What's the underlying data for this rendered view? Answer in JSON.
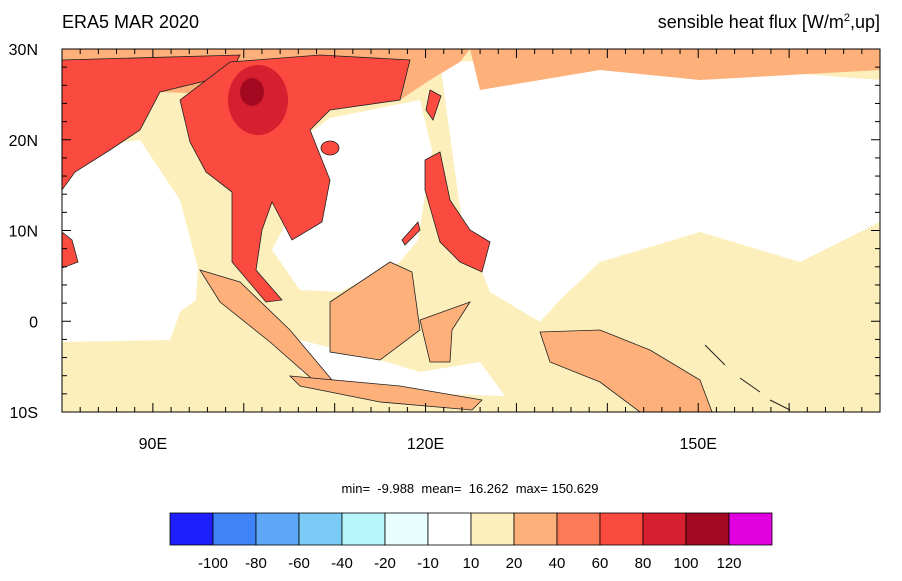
{
  "header": {
    "title": "ERA5 MAR 2020",
    "variable": [
      "sensible heat flux [W/m",
      "2",
      ",up]"
    ]
  },
  "axes": {
    "lat_labels": [
      "30N",
      "20N",
      "10N",
      "0",
      "10S"
    ],
    "lon_labels": [
      "90E",
      "120E",
      "150E"
    ]
  },
  "stats": "min=  -9.988  mean=  16.262  max= 150.629",
  "colorbar": {
    "colors": [
      "#1f1ffd",
      "#3f83f7",
      "#5ca8f6",
      "#7acbf6",
      "#b6f6fa",
      "#e6fefd",
      "#ffffff",
      "#fdefbb",
      "#fdb07a",
      "#fc7a58",
      "#fb4a40",
      "#d7202f",
      "#a30a21",
      "#e000e0"
    ],
    "labels": [
      "-100",
      "-80",
      "-60",
      "-40",
      "-20",
      "-10",
      "10",
      "20",
      "40",
      "60",
      "80",
      "100",
      "120"
    ]
  }
}
